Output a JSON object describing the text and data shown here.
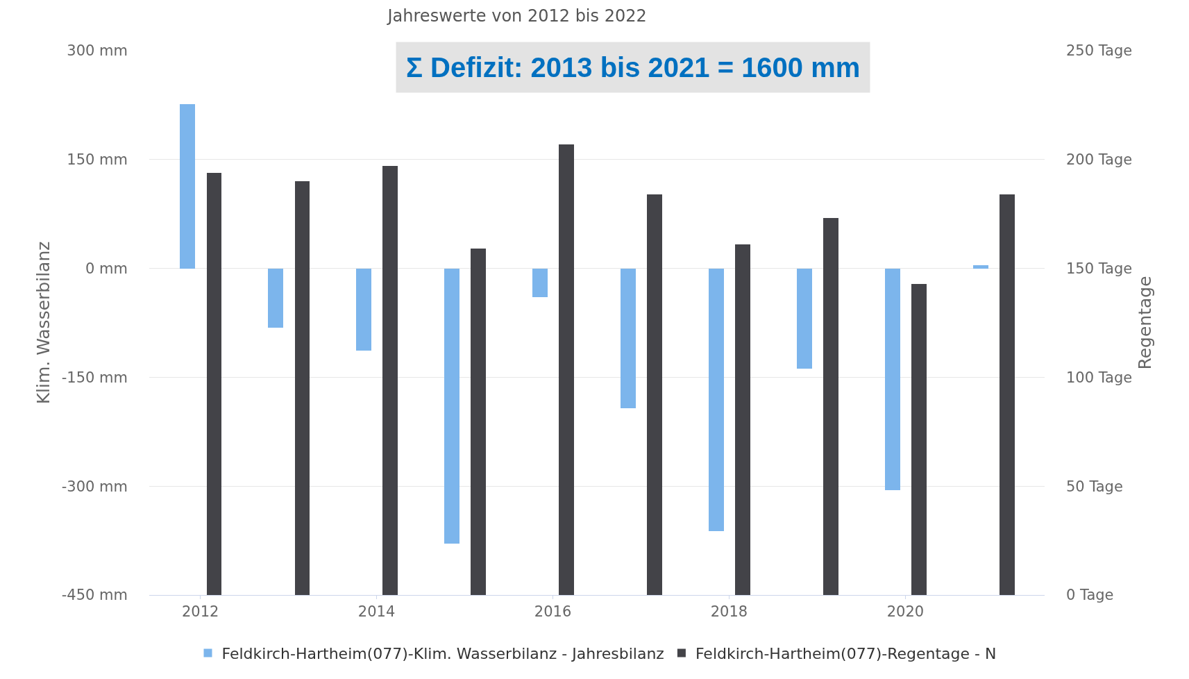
{
  "chart_data": {
    "type": "bar",
    "title": "Jahreswerte von 2012 bis 2022",
    "x": [
      2012,
      2013,
      2014,
      2015,
      2016,
      2017,
      2018,
      2019,
      2020,
      2021
    ],
    "series": [
      {
        "name": "Feldkirch-Hartheim(077)-Klim. Wasserbilanz - Jahresbilanz",
        "color": "#7cb5ec",
        "values": [
          226,
          -82,
          -113,
          -379,
          -40,
          -193,
          -362,
          -138,
          -306,
          4
        ]
      },
      {
        "name": "Feldkirch-Hartheim(077)-Regentage - N",
        "color": "#434348",
        "axis": "y2",
        "values": [
          194,
          190,
          197,
          159,
          207,
          184,
          161,
          173,
          143,
          184
        ]
      }
    ],
    "xlim": [
      2011.42,
      2021.58
    ],
    "xticks": [
      2012,
      2014,
      2016,
      2018,
      2020
    ],
    "ylim": [
      -450,
      300
    ],
    "yticks": [
      {
        "value": -450,
        "label": "-450 mm"
      },
      {
        "value": -300,
        "label": "-300 mm"
      },
      {
        "value": -150,
        "label": "-150 mm"
      },
      {
        "value": 0,
        "label": "0 mm"
      },
      {
        "value": 150,
        "label": "150 mm"
      },
      {
        "value": 300,
        "label": "300 mm"
      }
    ],
    "ylabel": "Klim. Wasserbilanz",
    "y2lim": [
      0,
      250
    ],
    "y2ticks": [
      {
        "value": 0,
        "label": "0 Tage"
      },
      {
        "value": 50,
        "label": "50 Tage"
      },
      {
        "value": 100,
        "label": "100 Tage"
      },
      {
        "value": 150,
        "label": "150 Tage"
      },
      {
        "value": 200,
        "label": "200 Tage"
      },
      {
        "value": 250,
        "label": "250 Tage"
      }
    ],
    "y2label": "Regentage",
    "annotations": [
      "Σ Defizit: 2013 bis 2021 = 1600 mm"
    ],
    "grid": "y",
    "legend": "bottom"
  }
}
